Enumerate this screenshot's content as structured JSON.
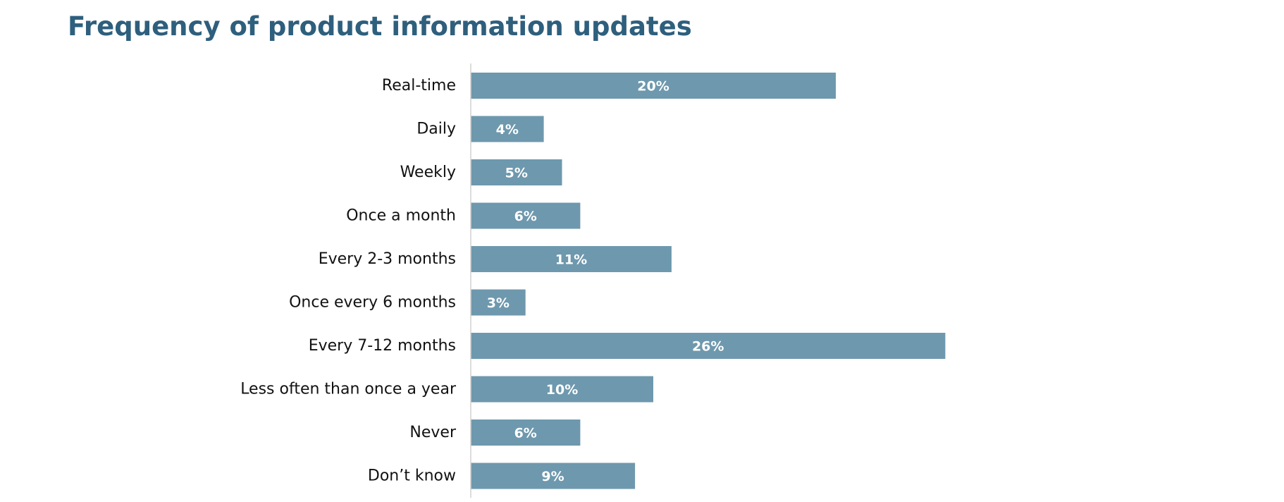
{
  "chart_data": {
    "type": "bar",
    "orientation": "horizontal",
    "title": "Frequency of product information updates",
    "categories": [
      "Real-time",
      "Daily",
      "Weekly",
      "Once a month",
      "Every 2-3 months",
      "Once every 6 months",
      "Every 7-12 months",
      "Less often than once a year",
      "Never",
      "Don’t know"
    ],
    "values": [
      20,
      4,
      5,
      6,
      11,
      3,
      26,
      10,
      6,
      9
    ],
    "data_labels": [
      "20%",
      "4%",
      "5%",
      "6%",
      "11%",
      "3%",
      "26%",
      "10%",
      "6%",
      "9%"
    ],
    "xlabel": "",
    "ylabel": "",
    "grid": false,
    "legend": "none",
    "bar_color": "#6e98ad",
    "title_color": "#2e5f7d",
    "axis_color": "#d0d0d0"
  }
}
